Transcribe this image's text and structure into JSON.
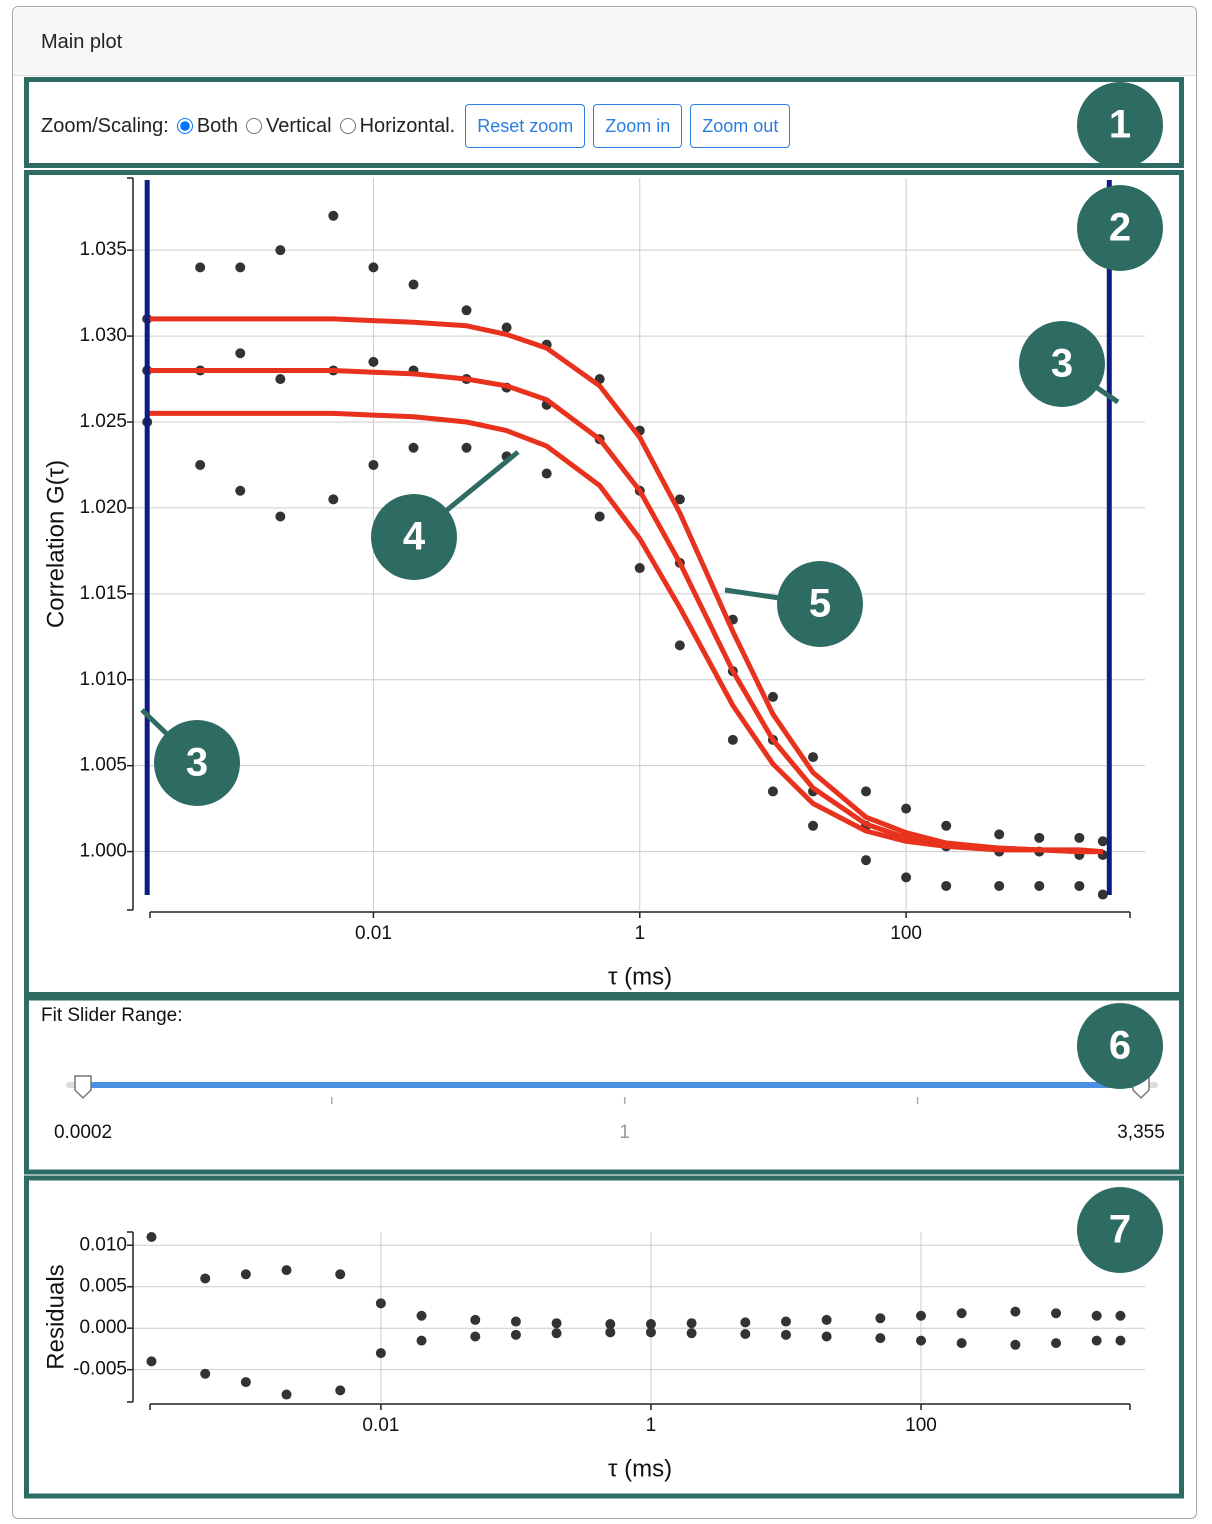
{
  "header": {
    "title": "Main plot"
  },
  "toolbar": {
    "label": "Zoom/Scaling:",
    "options": [
      "Both",
      "Vertical",
      "Horizontal."
    ],
    "selected": 0,
    "buttons": [
      "Reset zoom",
      "Zoom in",
      "Zoom out"
    ]
  },
  "chart_data": [
    {
      "type": "scatter",
      "log_x": true,
      "grid": true,
      "xlabel": "τ (ms)",
      "ylabel": "Correlation G(τ)",
      "xlim": [
        0.00021,
        4800
      ],
      "xticks": [
        0.01,
        1,
        100
      ],
      "ylim": [
        0.9966,
        1.0392
      ],
      "yticks": [
        {
          "value": 1,
          "label": "1.000"
        },
        1.005,
        {
          "value": 1.01,
          "label": "1.010"
        },
        1.015,
        {
          "value": 1.02,
          "label": "1.020"
        },
        1.025,
        {
          "value": 1.03,
          "label": "1.030"
        },
        1.035
      ],
      "range_marker_color": "#0d1b85",
      "x": [
        0.0002,
        0.0005,
        0.001,
        0.002,
        0.005,
        0.01,
        0.02,
        0.05,
        0.1,
        0.2,
        0.5,
        1,
        2,
        5,
        10,
        20,
        50,
        100,
        200,
        500,
        1000,
        2000,
        3000
      ],
      "series": [
        {
          "mode": "markers",
          "color": "#333333",
          "values": [
            1.031,
            1.034,
            1.034,
            1.035,
            1.037,
            1.034,
            1.033,
            1.0315,
            1.0305,
            1.0295,
            1.0275,
            1.0245,
            1.0205,
            1.0135,
            1.009,
            1.0055,
            1.0035,
            1.0025,
            1.0015,
            1.001,
            1.0008,
            1.0008,
            1.0006
          ]
        },
        {
          "mode": "markers",
          "color": "#333333",
          "values": [
            1.028,
            1.028,
            1.029,
            1.0275,
            1.028,
            1.0285,
            1.028,
            1.0275,
            1.027,
            1.026,
            1.024,
            1.021,
            1.0168,
            1.0105,
            1.0065,
            1.0035,
            1.0015,
            1.0008,
            1.0003,
            1.0,
            1.0,
            0.9998,
            0.9998
          ]
        },
        {
          "mode": "markers",
          "color": "#333333",
          "values": [
            1.025,
            1.0225,
            1.021,
            1.0195,
            1.0205,
            1.0225,
            1.0235,
            1.0235,
            1.023,
            1.022,
            1.0195,
            1.0165,
            1.012,
            1.0065,
            1.0035,
            1.0015,
            0.9995,
            0.9985,
            0.998,
            0.998,
            0.998,
            0.998,
            0.9975
          ]
        },
        {
          "mode": "lines",
          "color": "#e8321e",
          "values": [
            1.031,
            1.031,
            1.031,
            1.031,
            1.031,
            1.0309,
            1.0308,
            1.0306,
            1.0301,
            1.0293,
            1.0271,
            1.0241,
            1.0197,
            1.0128,
            1.008,
            1.0046,
            1.002,
            1.0011,
            1.0005,
            1.0002,
            1.0001,
            1.0001,
            1.0
          ]
        },
        {
          "mode": "lines",
          "color": "#e8321e",
          "values": [
            1.028,
            1.028,
            1.028,
            1.028,
            1.028,
            1.0279,
            1.0278,
            1.0275,
            1.0271,
            1.0263,
            1.024,
            1.021,
            1.0168,
            1.0105,
            1.0065,
            1.0037,
            1.0016,
            1.0008,
            1.0004,
            1.0002,
            1.0001,
            1.0,
            1.0
          ]
        },
        {
          "mode": "lines",
          "color": "#e8321e",
          "values": [
            1.0255,
            1.0255,
            1.0255,
            1.0255,
            1.0255,
            1.0254,
            1.0253,
            1.025,
            1.0245,
            1.0236,
            1.0213,
            1.0182,
            1.0142,
            1.0085,
            1.0051,
            1.0028,
            1.0012,
            1.0006,
            1.0003,
            1.0001,
            1.0001,
            1.0,
            1.0
          ]
        }
      ]
    },
    {
      "type": "scatter",
      "log_x": true,
      "grid": true,
      "xlabel": "τ (ms)",
      "ylabel": "Residuals",
      "xlim": [
        0.000195,
        3530
      ],
      "xticks": [
        0.01,
        1,
        100
      ],
      "ylim": [
        -0.0089,
        0.0116
      ],
      "yticks": [
        -0.005,
        {
          "value": 0,
          "label": "0.000"
        },
        0.005,
        {
          "value": 0.01,
          "label": "0.010"
        }
      ],
      "x": [
        0.0002,
        0.0005,
        0.001,
        0.002,
        0.005,
        0.01,
        0.02,
        0.05,
        0.1,
        0.2,
        0.5,
        1,
        2,
        5,
        10,
        20,
        50,
        100,
        200,
        500,
        1000,
        2000,
        3000
      ],
      "series": [
        {
          "mode": "markers",
          "color": "#333333",
          "values": [
            0.011,
            0.006,
            0.0065,
            0.007,
            0.0065,
            0.003,
            0.0015,
            0.001,
            0.0008,
            0.0006,
            0.0005,
            0.0005,
            0.0006,
            0.0007,
            0.0008,
            0.001,
            0.0012,
            0.0015,
            0.0018,
            0.002,
            0.0018,
            0.0015,
            0.0015
          ]
        },
        {
          "mode": "markers",
          "color": "#333333",
          "values": [
            -0.004,
            -0.0055,
            -0.0065,
            -0.008,
            -0.0075,
            -0.003,
            -0.0015,
            -0.001,
            -0.0008,
            -0.0006,
            -0.0005,
            -0.0005,
            -0.0006,
            -0.0007,
            -0.0008,
            -0.001,
            -0.0012,
            -0.0015,
            -0.0018,
            -0.002,
            -0.0018,
            -0.0015,
            -0.0015
          ]
        }
      ]
    }
  ],
  "fit_slider": {
    "label": "Fit Slider Range:",
    "color": "#4a90e2",
    "min": 0.0002,
    "max": {
      "value": 3355,
      "label": "3,355"
    },
    "ticks": [
      {
        "value": 0.01,
        "label": null
      },
      1,
      {
        "value": 100,
        "label": null
      }
    ]
  },
  "badges": [
    "1",
    "2",
    "3",
    "3",
    "4",
    "5",
    "6",
    "7"
  ]
}
